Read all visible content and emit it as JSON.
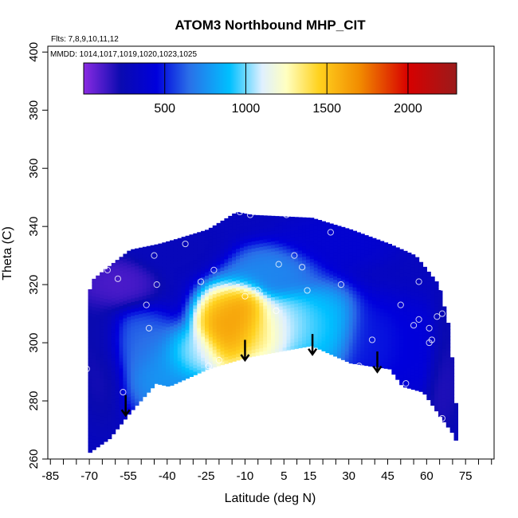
{
  "chart_data": {
    "type": "heatmap",
    "title": "ATOM3 Northbound MHP_CIT",
    "flights_note": "Flts: 7,8,9,10,11,12",
    "dates_note": "MMDD: 1014,1017,1019,1020,1023,1025",
    "xlabel": "Latitude (deg N)",
    "ylabel": "Theta (C)",
    "xlim": [
      -86,
      86
    ],
    "ylim": [
      260,
      402
    ],
    "x_ticks": [
      -85,
      -70,
      -55,
      -40,
      -25,
      -10,
      5,
      15,
      30,
      45,
      60,
      75
    ],
    "x_minor_ticks": [
      -80,
      -75,
      -65,
      -60,
      -50,
      -45,
      -35,
      -30,
      -20,
      -15,
      -5,
      0,
      10,
      20,
      25,
      35,
      40,
      50,
      55,
      65,
      70,
      80,
      85
    ],
    "y_ticks": [
      260,
      280,
      300,
      320,
      340,
      360,
      380,
      400
    ],
    "colorbar": {
      "range": [
        0,
        2300
      ],
      "ticks": [
        500,
        1000,
        1500,
        2000
      ],
      "stops": [
        {
          "v": 0,
          "c": "#8a2be2"
        },
        {
          "v": 230,
          "c": "#0a0ab0"
        },
        {
          "v": 450,
          "c": "#0000dc"
        },
        {
          "v": 650,
          "c": "#2a6fe8"
        },
        {
          "v": 900,
          "c": "#00c0ff"
        },
        {
          "v": 1100,
          "c": "#dff0ff"
        },
        {
          "v": 1250,
          "c": "#ffffc0"
        },
        {
          "v": 1450,
          "c": "#ffd21f"
        },
        {
          "v": 1700,
          "c": "#f28c00"
        },
        {
          "v": 2000,
          "c": "#d70000"
        },
        {
          "v": 2300,
          "c": "#9b1b1b"
        }
      ]
    },
    "data_envelope": {
      "lower": [
        [
          -71,
          262
        ],
        [
          -63,
          267
        ],
        [
          -55,
          276
        ],
        [
          -45,
          286
        ],
        [
          -40,
          285
        ],
        [
          -25,
          291
        ],
        [
          -10,
          295
        ],
        [
          15,
          299
        ],
        [
          30,
          293
        ],
        [
          45,
          291
        ],
        [
          50,
          285
        ],
        [
          58,
          283
        ],
        [
          65,
          274
        ],
        [
          70,
          268
        ],
        [
          72,
          262
        ]
      ],
      "upper": [
        [
          -72,
          262
        ],
        [
          -74,
          280
        ],
        [
          -74,
          310
        ],
        [
          -69,
          322
        ],
        [
          -65,
          325
        ],
        [
          -55,
          332
        ],
        [
          -44,
          334
        ],
        [
          -36,
          336
        ],
        [
          -25,
          339
        ],
        [
          -14,
          345
        ],
        [
          -8,
          344
        ],
        [
          15,
          343
        ],
        [
          30,
          339
        ],
        [
          45,
          334
        ],
        [
          55,
          330
        ],
        [
          64,
          320
        ],
        [
          68,
          305
        ],
        [
          70,
          285
        ],
        [
          72,
          262
        ]
      ]
    },
    "field_centers": [
      {
        "lat": -18,
        "theta": 305,
        "value": 1700,
        "sx": 8,
        "sy": 10
      },
      {
        "lat": -10,
        "theta": 309,
        "value": 1700,
        "sx": 6,
        "sy": 8
      },
      {
        "lat": -3,
        "theta": 304,
        "value": 1400,
        "sx": 8,
        "sy": 8
      },
      {
        "lat": 8,
        "theta": 306,
        "value": 1100,
        "sx": 9,
        "sy": 8
      },
      {
        "lat": -30,
        "theta": 296,
        "value": 1100,
        "sx": 8,
        "sy": 6
      },
      {
        "lat": 20,
        "theta": 305,
        "value": 950,
        "sx": 10,
        "sy": 10
      },
      {
        "lat": -42,
        "theta": 290,
        "value": 800,
        "sx": 10,
        "sy": 10
      },
      {
        "lat": 0,
        "theta": 325,
        "value": 750,
        "sx": 12,
        "sy": 6
      },
      {
        "lat": -52,
        "theta": 300,
        "value": 650,
        "sx": 9,
        "sy": 8
      },
      {
        "lat": 40,
        "theta": 300,
        "value": 500,
        "sx": 10,
        "sy": 10
      },
      {
        "lat": 55,
        "theta": 298,
        "value": 450,
        "sx": 8,
        "sy": 10
      },
      {
        "lat": 25,
        "theta": 335,
        "value": 400,
        "sx": 14,
        "sy": 6
      },
      {
        "lat": -65,
        "theta": 296,
        "value": 200,
        "sx": 6,
        "sy": 14
      },
      {
        "lat": -60,
        "theta": 320,
        "value": 100,
        "sx": 10,
        "sy": 6
      },
      {
        "lat": -35,
        "theta": 332,
        "value": 280,
        "sx": 12,
        "sy": 5
      },
      {
        "lat": 66,
        "theta": 290,
        "value": 180,
        "sx": 4,
        "sy": 14
      }
    ],
    "field_background": 300,
    "observation_points": [
      [
        -72,
        307
      ],
      [
        -71,
        291
      ],
      [
        -73,
        293
      ],
      [
        -63,
        325
      ],
      [
        -59,
        322
      ],
      [
        -48,
        313
      ],
      [
        -47,
        305
      ],
      [
        -45,
        330
      ],
      [
        -44,
        320
      ],
      [
        -33,
        334
      ],
      [
        -27,
        321
      ],
      [
        -22,
        325
      ],
      [
        -24,
        292
      ],
      [
        -20,
        294
      ],
      [
        -12,
        345
      ],
      [
        -8,
        344
      ],
      [
        -10,
        316
      ],
      [
        -5,
        318
      ],
      [
        2,
        311
      ],
      [
        3,
        327
      ],
      [
        6,
        344
      ],
      [
        9,
        330
      ],
      [
        12,
        326
      ],
      [
        14,
        318
      ],
      [
        23,
        338
      ],
      [
        27,
        320
      ],
      [
        34,
        292
      ],
      [
        39,
        301
      ],
      [
        50,
        313
      ],
      [
        52,
        286
      ],
      [
        55,
        306
      ],
      [
        57,
        308
      ],
      [
        57,
        321
      ],
      [
        61,
        305
      ],
      [
        61,
        300
      ],
      [
        62,
        301
      ],
      [
        64,
        309
      ],
      [
        66,
        310
      ],
      [
        66,
        319
      ],
      [
        66,
        274
      ],
      [
        -57,
        283
      ],
      [
        -72,
        262
      ]
    ],
    "arrows": [
      {
        "lat": -56,
        "theta_start": 282,
        "theta_end": 275
      },
      {
        "lat": -10,
        "theta_start": 301,
        "theta_end": 294
      },
      {
        "lat": 16,
        "theta_start": 303,
        "theta_end": 296
      },
      {
        "lat": 41,
        "theta_start": 297,
        "theta_end": 290
      }
    ]
  }
}
